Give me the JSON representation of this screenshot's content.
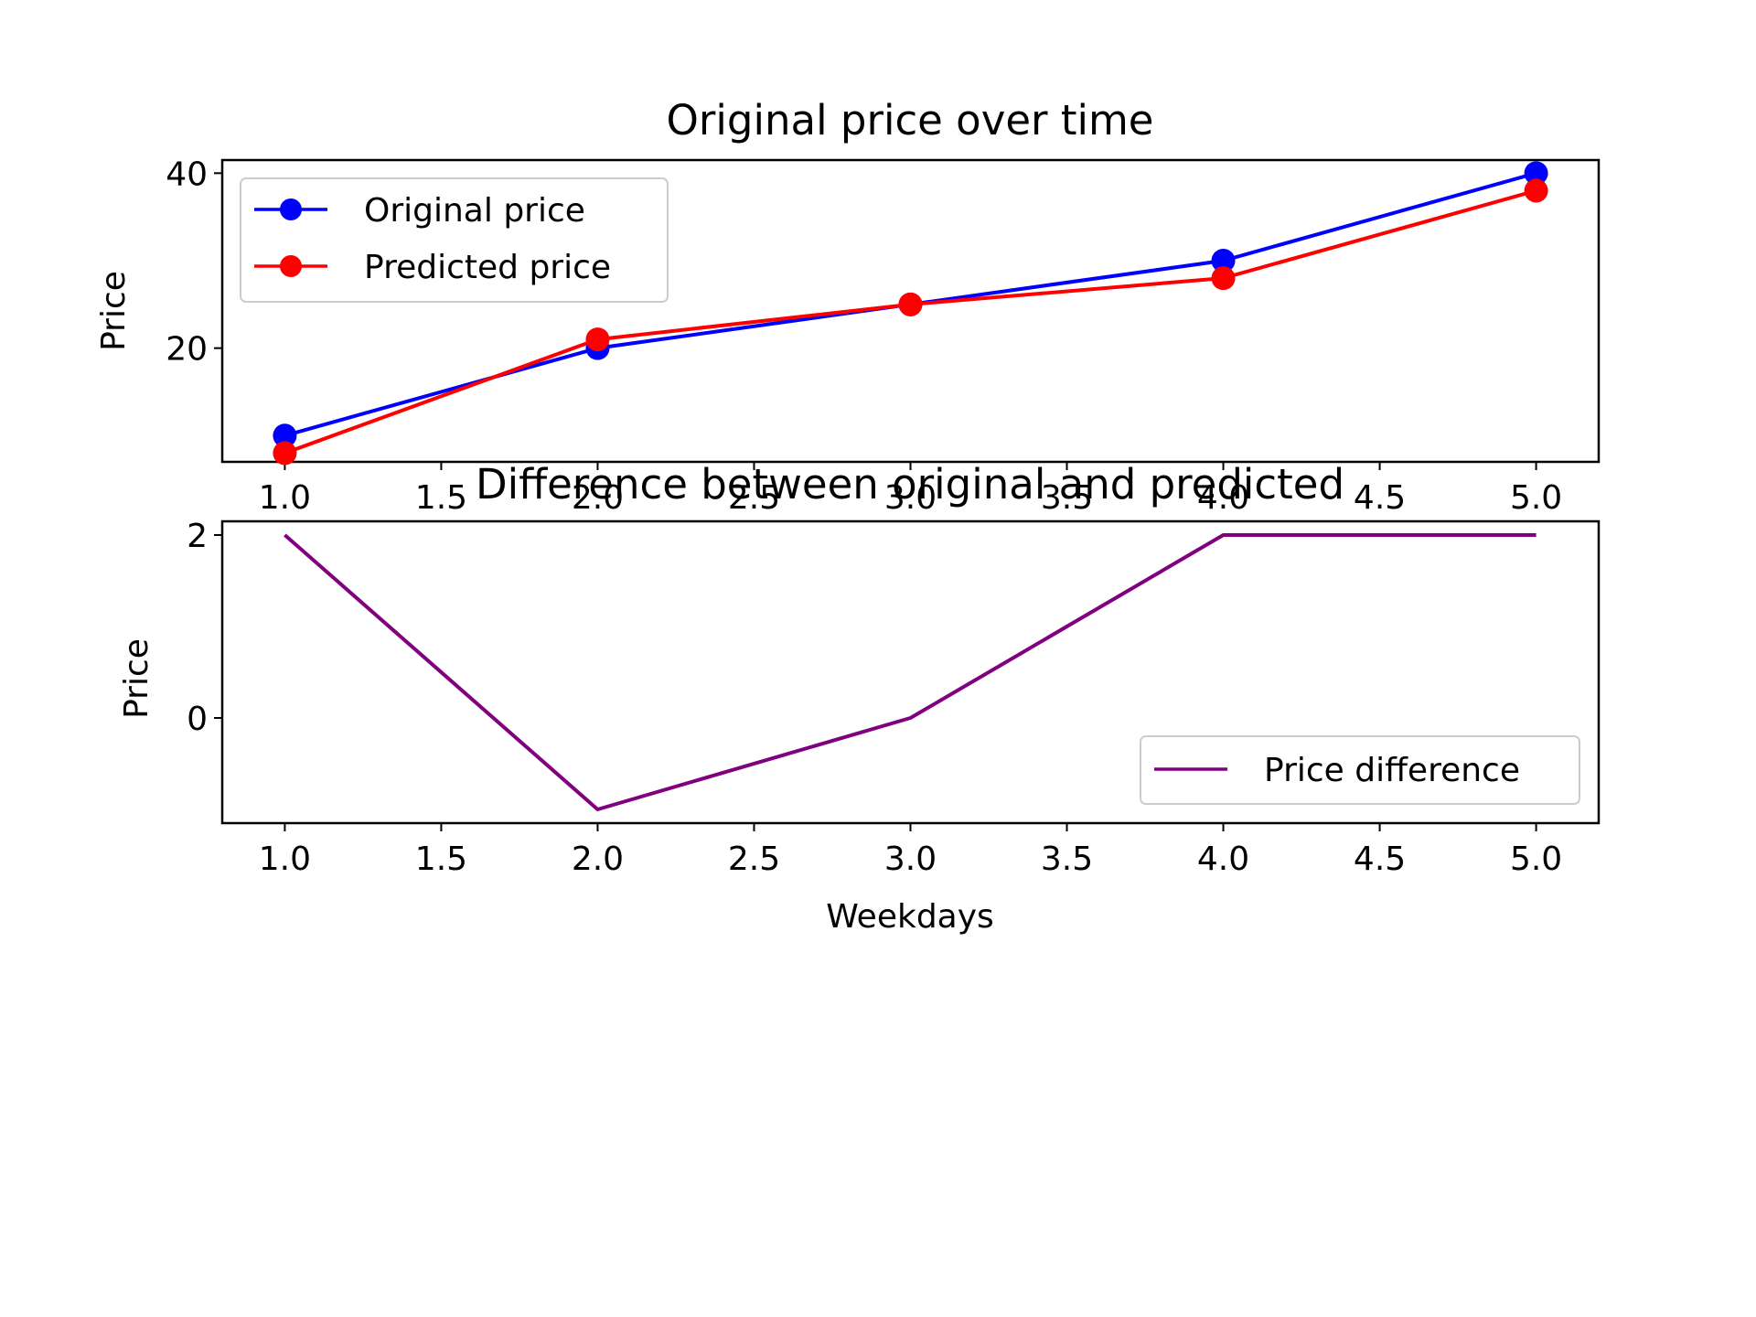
{
  "chart_data": [
    {
      "type": "line",
      "title": "Original price over time",
      "xlabel": "",
      "ylabel": "Price",
      "x": [
        1,
        2,
        3,
        4,
        5
      ],
      "xlim": [
        0.8,
        5.2
      ],
      "ylim": [
        7,
        41.5
      ],
      "xticks": [
        "1.0",
        "1.5",
        "2.0",
        "2.5",
        "3.0",
        "3.5",
        "4.0",
        "4.5",
        "5.0"
      ],
      "yticks": [
        "20",
        "40"
      ],
      "grid": false,
      "legend_position": "top-left",
      "series": [
        {
          "name": "Original price",
          "color": "#0000ff",
          "marker": "circle",
          "values": [
            10,
            20,
            25,
            30,
            40
          ]
        },
        {
          "name": "Predicted price",
          "color": "#ff0000",
          "marker": "circle",
          "values": [
            8,
            21,
            25,
            28,
            38
          ]
        }
      ]
    },
    {
      "type": "line",
      "title": "Difference between original and predicted",
      "xlabel": "Weekdays",
      "ylabel": "Price",
      "x": [
        1,
        2,
        3,
        4,
        5
      ],
      "xlim": [
        0.8,
        5.2
      ],
      "ylim": [
        -1.15,
        2.15
      ],
      "xticks": [
        "1.0",
        "1.5",
        "2.0",
        "2.5",
        "3.0",
        "3.5",
        "4.0",
        "4.5",
        "5.0"
      ],
      "yticks": [
        "0",
        "2"
      ],
      "grid": false,
      "legend_position": "lower-right",
      "series": [
        {
          "name": "Price difference",
          "color": "#800080",
          "marker": "none",
          "values": [
            2,
            -1,
            0,
            2,
            2
          ]
        }
      ]
    }
  ]
}
